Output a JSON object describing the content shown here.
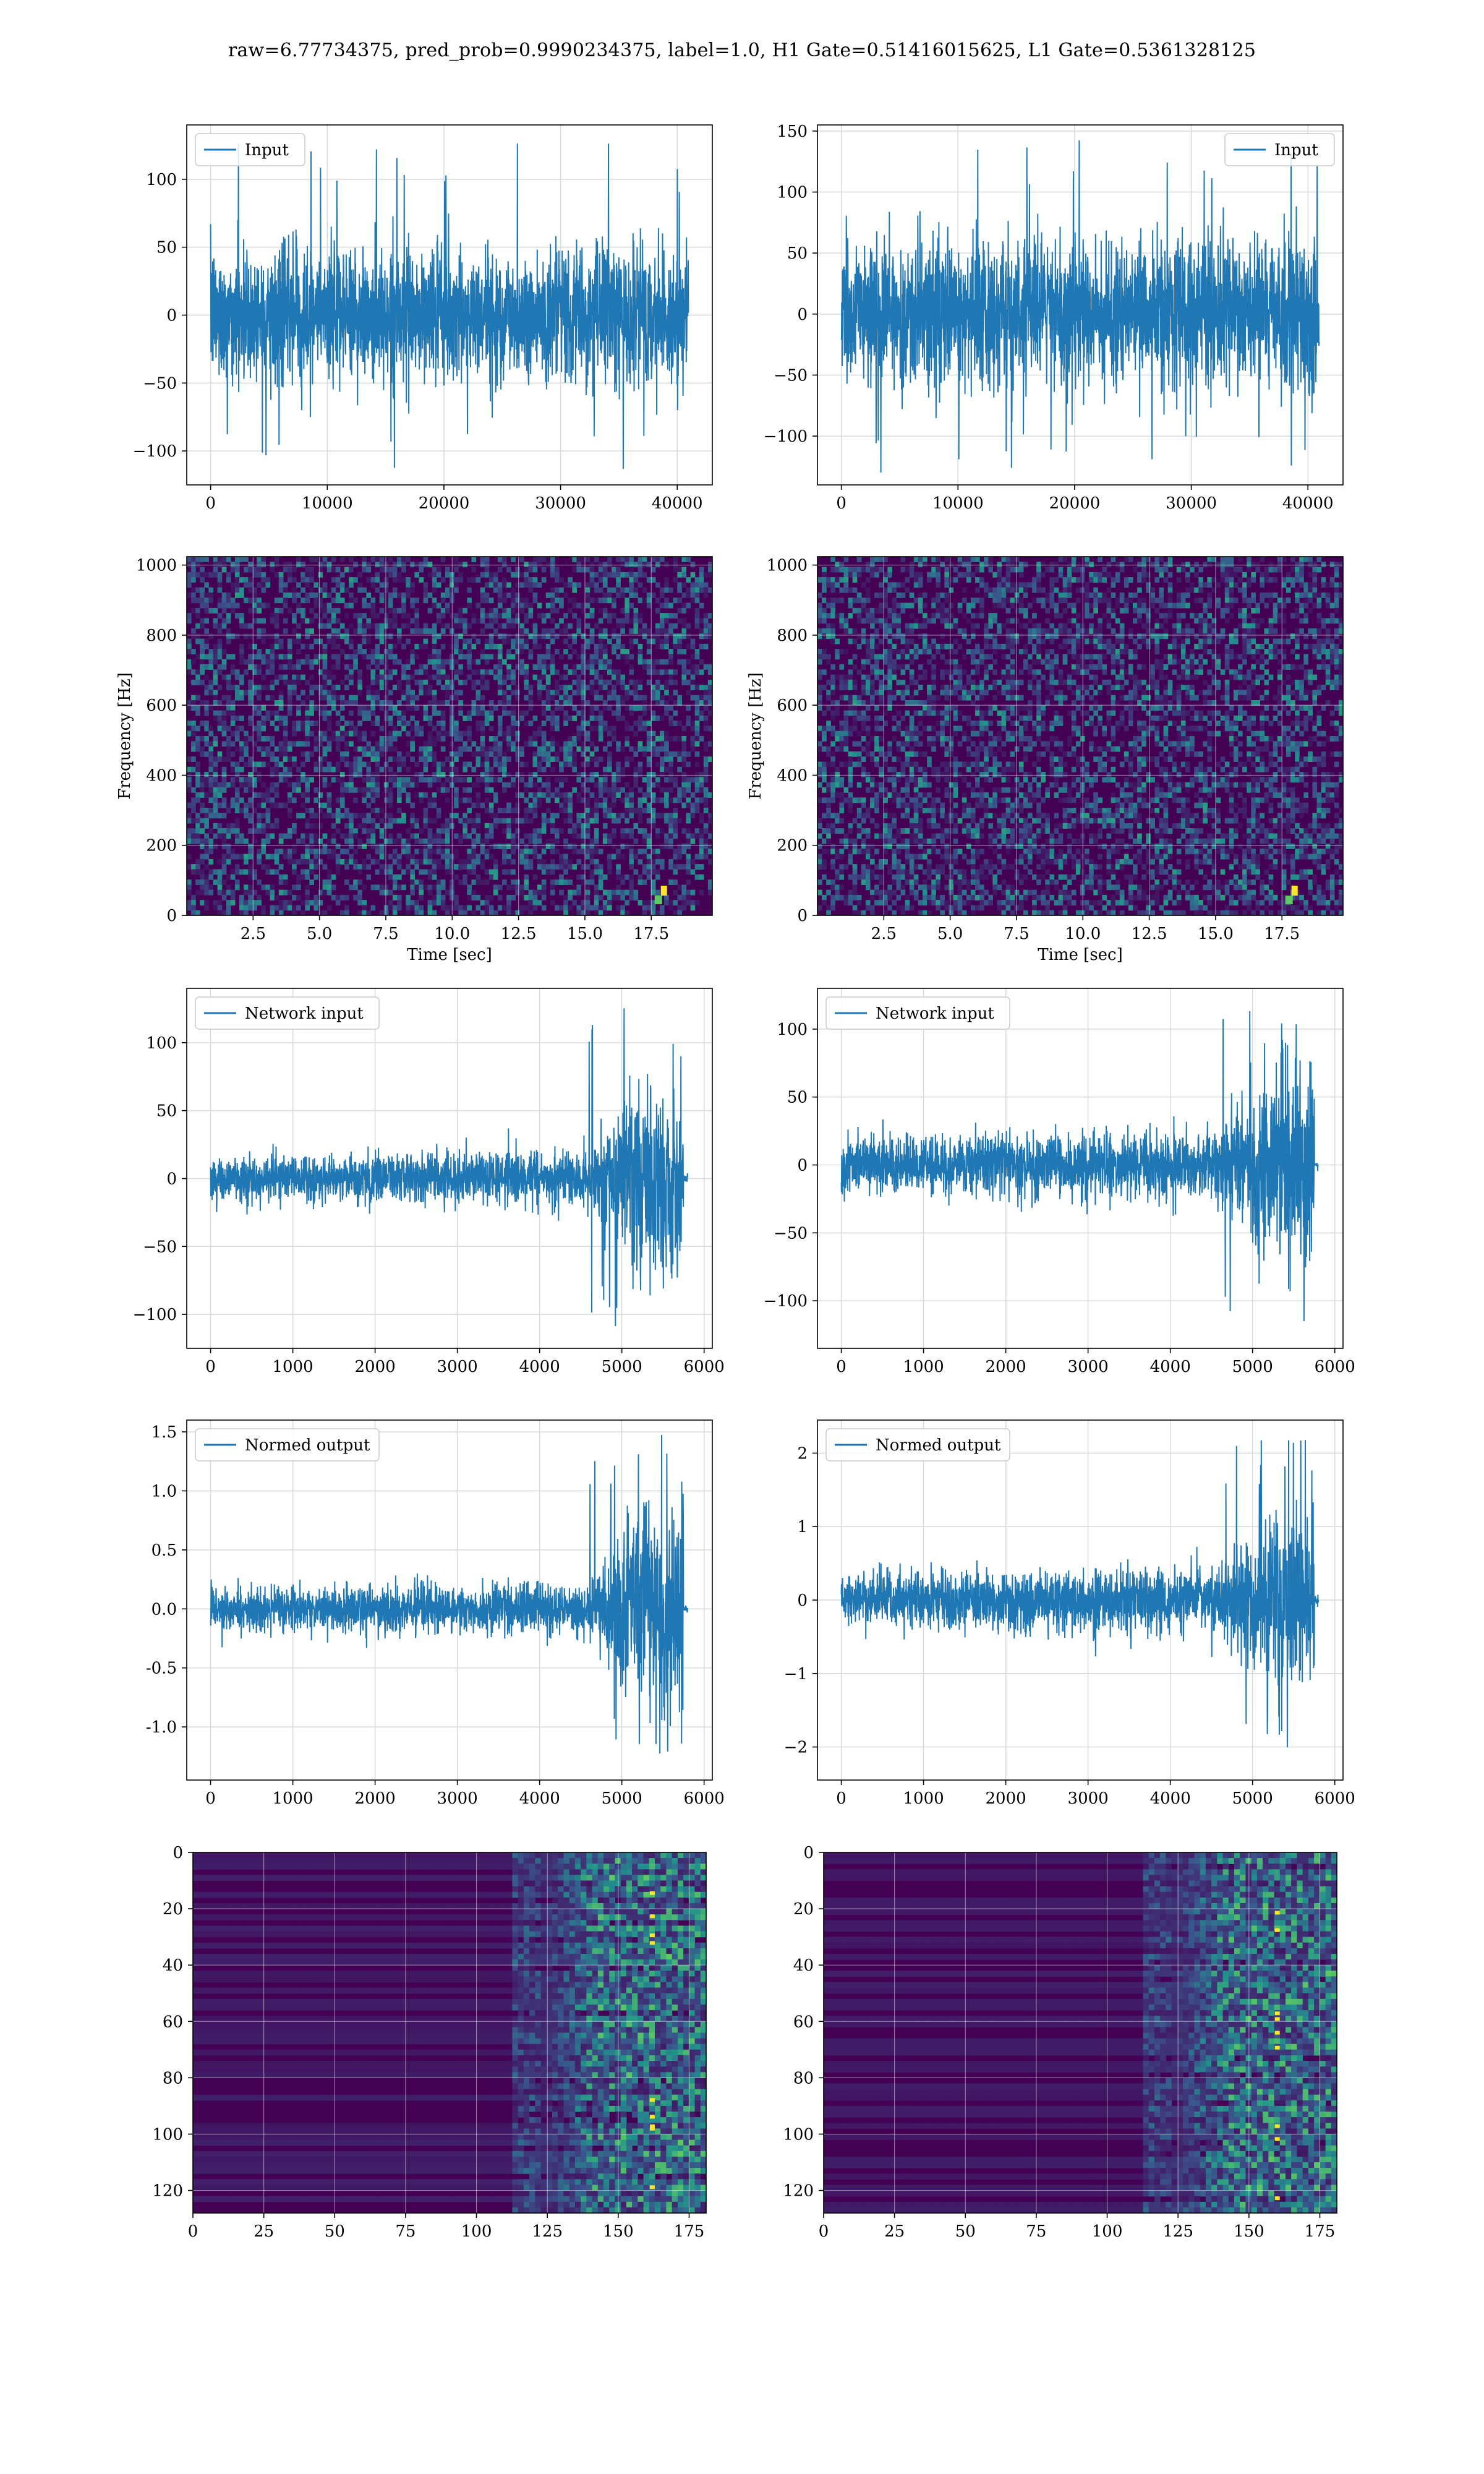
{
  "figure": {
    "title": "raw=6.77734375, pred_prob=0.9990234375, label=1.0, H1 Gate=0.51416015625, L1 Gate=0.5361328125"
  },
  "colors": {
    "line": "#1f77b4",
    "grid": "#d9d9d9",
    "viridis_low": "#440154",
    "viridis_mid": "#21918c",
    "viridis_high": "#fde725"
  },
  "chart_data": [
    {
      "id": "input-left",
      "type": "line",
      "legend": "Input",
      "legend_loc": "upper left",
      "xlim": [
        -2048,
        43008
      ],
      "ylim": [
        -125,
        140
      ],
      "xticks": [
        0,
        10000,
        20000,
        30000,
        40000
      ],
      "yticks": [
        -100,
        -50,
        0,
        50,
        100
      ],
      "x_range": [
        0,
        40960
      ],
      "envelope": [
        -55,
        60
      ],
      "spike_max": 130,
      "spike_min": -115,
      "xlabel": "",
      "ylabel": "",
      "grid": true
    },
    {
      "id": "input-right",
      "type": "line",
      "legend": "Input",
      "legend_loc": "upper right",
      "xlim": [
        -2048,
        43008
      ],
      "ylim": [
        -140,
        155
      ],
      "xticks": [
        0,
        10000,
        20000,
        30000,
        40000
      ],
      "yticks": [
        -100,
        -50,
        0,
        50,
        100,
        150
      ],
      "x_range": [
        0,
        40960
      ],
      "envelope": [
        -65,
        75
      ],
      "spike_max": 145,
      "spike_min": -130,
      "xlabel": "",
      "ylabel": "",
      "grid": true
    },
    {
      "id": "spec-left",
      "type": "heatmap",
      "xlim": [
        0,
        19.8
      ],
      "ylim": [
        0,
        1024
      ],
      "xticks": [
        2.5,
        5.0,
        7.5,
        10.0,
        12.5,
        15.0,
        17.5
      ],
      "yticks": [
        0,
        200,
        400,
        600,
        800,
        1000
      ],
      "xlabel": "Time [sec]",
      "ylabel": "Frequency [Hz]",
      "grid": true,
      "chirp": {
        "t_end": 18.0,
        "f_end": 60
      }
    },
    {
      "id": "spec-right",
      "type": "heatmap",
      "xlim": [
        0,
        19.8
      ],
      "ylim": [
        0,
        1024
      ],
      "xticks": [
        2.5,
        5.0,
        7.5,
        10.0,
        12.5,
        15.0,
        17.5
      ],
      "yticks": [
        0,
        200,
        400,
        600,
        800,
        1000
      ],
      "xlabel": "Time [sec]",
      "ylabel": "Frequency [Hz]",
      "grid": true,
      "chirp": {
        "t_end": 18.0,
        "f_end": 60
      }
    },
    {
      "id": "net-left",
      "type": "line",
      "legend": "Network input",
      "legend_loc": "upper left",
      "xlim": [
        -290,
        6100
      ],
      "ylim": [
        -125,
        140
      ],
      "xticks": [
        0,
        1000,
        2000,
        3000,
        4000,
        5000,
        6000
      ],
      "yticks": [
        -100,
        -50,
        0,
        50,
        100
      ],
      "base_amp": 20,
      "burst_start": 4600,
      "burst_peak": 5200,
      "signal_end": 5750,
      "tail_end": 5800,
      "peak_max": 128,
      "peak_min": -112,
      "xlabel": "",
      "ylabel": "",
      "grid": true
    },
    {
      "id": "net-right",
      "type": "line",
      "legend": "Network input",
      "legend_loc": "upper left",
      "xlim": [
        -290,
        6100
      ],
      "ylim": [
        -135,
        130
      ],
      "xticks": [
        0,
        1000,
        2000,
        3000,
        4000,
        5000,
        6000
      ],
      "yticks": [
        -100,
        -50,
        0,
        50,
        100
      ],
      "base_amp": 25,
      "burst_start": 4600,
      "burst_peak": 5200,
      "signal_end": 5750,
      "tail_end": 5800,
      "peak_max": 122,
      "peak_min": -115,
      "xlabel": "",
      "ylabel": "",
      "grid": true
    },
    {
      "id": "norm-left",
      "type": "line",
      "legend": "Normed output",
      "legend_loc": "upper left",
      "xlim": [
        -290,
        6100
      ],
      "ylim": [
        -1.45,
        1.6
      ],
      "xticks": [
        0,
        1000,
        2000,
        3000,
        4000,
        5000,
        6000
      ],
      "yticks": [
        -1.0,
        -0.5,
        0.0,
        0.5,
        1.0,
        1.5
      ],
      "ytick_format": "fixed1",
      "base_amp": 0.22,
      "burst_start": 4600,
      "burst_peak": 5200,
      "signal_end": 5750,
      "tail_end": 5800,
      "peak_max": 1.5,
      "peak_min": -1.32,
      "xlabel": "",
      "ylabel": "",
      "grid": true
    },
    {
      "id": "norm-right",
      "type": "line",
      "legend": "Normed output",
      "legend_loc": "upper left",
      "xlim": [
        -290,
        6100
      ],
      "ylim": [
        -2.45,
        2.45
      ],
      "xticks": [
        0,
        1000,
        2000,
        3000,
        4000,
        5000,
        6000
      ],
      "yticks": [
        -2,
        -1,
        0,
        1,
        2
      ],
      "base_amp": 0.45,
      "burst_start": 4600,
      "burst_peak": 5200,
      "signal_end": 5750,
      "tail_end": 5800,
      "peak_max": 2.25,
      "peak_min": -2.15,
      "xlabel": "",
      "ylabel": "",
      "grid": true
    },
    {
      "id": "feat-left",
      "type": "heatmap",
      "xlim": [
        0,
        181
      ],
      "ylim": [
        128,
        0
      ],
      "xticks": [
        0,
        25,
        50,
        75,
        100,
        125,
        150,
        175
      ],
      "yticks": [
        0,
        20,
        40,
        60,
        80,
        100,
        120
      ],
      "active_from": 122,
      "bright_col": 162,
      "xlabel": "",
      "ylabel": "",
      "grid": true
    },
    {
      "id": "feat-right",
      "type": "heatmap",
      "xlim": [
        0,
        181
      ],
      "ylim": [
        128,
        0
      ],
      "xticks": [
        0,
        25,
        50,
        75,
        100,
        125,
        150,
        175
      ],
      "yticks": [
        0,
        20,
        40,
        60,
        80,
        100,
        120
      ],
      "active_from": 122,
      "bright_col": 160,
      "xlabel": "",
      "ylabel": "",
      "grid": true
    }
  ]
}
